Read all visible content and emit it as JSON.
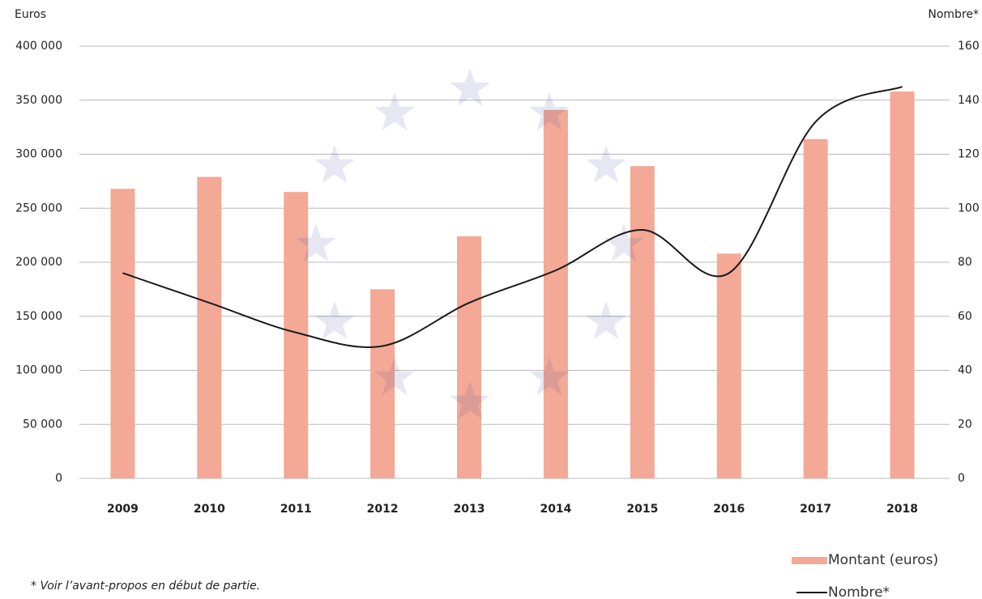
{
  "chart_data": {
    "type": "bar_line",
    "y_axis_title": "Euros",
    "y2_axis_title": "Nombre*",
    "categories": [
      "2009",
      "2010",
      "2011",
      "2012",
      "2013",
      "2014",
      "2015",
      "2016",
      "2017",
      "2018"
    ],
    "series": [
      {
        "name": "Montant (euros)",
        "type": "bar",
        "color": "#f4a896",
        "values": [
          268000,
          279000,
          265000,
          175000,
          224000,
          341000,
          289000,
          208000,
          314000,
          358000
        ]
      },
      {
        "name": "Nombre*",
        "type": "line",
        "axis": "y2",
        "color": "#1a1a1a",
        "values": [
          76,
          65,
          54,
          49,
          65,
          77,
          92,
          76,
          132,
          145
        ]
      }
    ],
    "ylim": [
      0,
      400000
    ],
    "yticks": [
      0,
      {
        "value": 50000,
        "label": "50 000"
      },
      {
        "value": 100000,
        "label": "100 000"
      },
      {
        "value": 150000,
        "label": "150 000"
      },
      {
        "value": 200000,
        "label": "200 000"
      },
      {
        "value": 250000,
        "label": "250 000"
      },
      {
        "value": 300000,
        "label": "300 000"
      },
      {
        "value": 350000,
        "label": "350 000"
      },
      {
        "value": 400000,
        "label": "400 000"
      }
    ],
    "y2lim": [
      0,
      160
    ],
    "y2ticks": [
      0,
      20,
      40,
      60,
      80,
      100,
      120,
      140,
      160
    ],
    "grid": true,
    "legend": "bottom-right",
    "footnote": "* Voir l’avant-propos en début de partie."
  }
}
